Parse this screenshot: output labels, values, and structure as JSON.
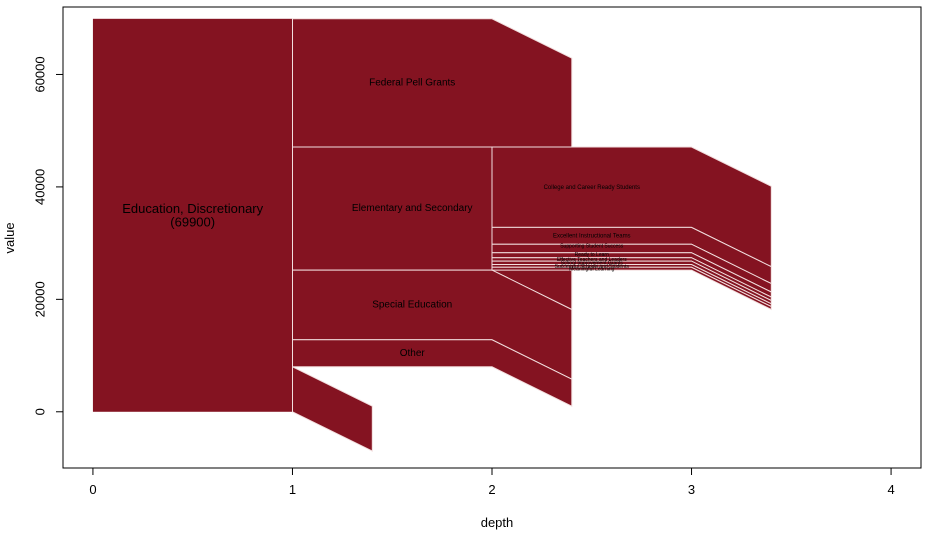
{
  "chart_data": {
    "type": "area",
    "xlabel": "depth",
    "ylabel": "value",
    "xlim": [
      -0.15,
      4.15
    ],
    "ylim": [
      -10000,
      72000
    ],
    "x_ticks": [
      "0",
      "1",
      "2",
      "3",
      "4"
    ],
    "y_ticks": [
      "0",
      "20000",
      "40000",
      "60000"
    ],
    "fill_color": "#841321",
    "line_color": "#f2dede",
    "root": {
      "label": "Education, Discretionary",
      "value_label": "(69900)",
      "x": [
        0,
        1
      ],
      "y": [
        0,
        69900
      ]
    },
    "bands": [
      {
        "label": "Federal Pell Grants",
        "x_start": 1,
        "x_break": 2,
        "x_end": 2.4,
        "bottom_start": 47100,
        "top_start": 69900,
        "bottom_break": 47100,
        "top_break": 69900,
        "bottom_end": 40100,
        "top_end": 62900
      },
      {
        "label": "Elementary and Secondary",
        "x_start": 1,
        "x_break": 2,
        "x_end": 2.4,
        "bottom_start": 25200,
        "top_start": 47100,
        "bottom_break": 25200,
        "top_break": 47100,
        "bottom_end": 18200,
        "top_end": 40100
      },
      {
        "label": "Special Education",
        "x_start": 1,
        "x_break": 2,
        "x_end": 2.4,
        "bottom_start": 12800,
        "top_start": 25200,
        "bottom_break": 12800,
        "top_break": 25200,
        "bottom_end": 5800,
        "top_end": 18200
      },
      {
        "label": "Other",
        "x_start": 1,
        "x_break": 2,
        "x_end": 2.4,
        "bottom_start": 8000,
        "top_start": 12800,
        "bottom_break": 8000,
        "top_break": 12800,
        "bottom_end": 1000,
        "top_end": 5800
      },
      {
        "label": "",
        "x_start": 1,
        "x_break": 1,
        "x_end": 1.4,
        "bottom_start": 0,
        "top_start": 8000,
        "bottom_break": 0,
        "top_break": 8000,
        "bottom_end": -7000,
        "top_end": 1000
      }
    ],
    "sub_bands": [
      {
        "label": "College and Career Ready Students",
        "bottom": 32800,
        "top": 47100
      },
      {
        "label": "Excellent Instructional Teams",
        "bottom": 29800,
        "top": 32800
      },
      {
        "label": "Supporting Student Success",
        "bottom": 28300,
        "top": 29800
      },
      {
        "label": "Ready to Learn",
        "bottom": 27400,
        "top": 28300
      },
      {
        "label": "Effective Teachers and Leaders",
        "bottom": 26800,
        "top": 27400
      },
      {
        "label": "School Improvement Grants",
        "bottom": 26200,
        "top": 26800
      },
      {
        "label": "Successful Schools and Students",
        "bottom": 25700,
        "top": 26200
      },
      {
        "label": "Meaningful Learning",
        "bottom": 25200,
        "top": 25700
      }
    ],
    "sub_band_x": {
      "start": 2,
      "break": 3,
      "end": 3.4,
      "shift": -7000
    }
  }
}
